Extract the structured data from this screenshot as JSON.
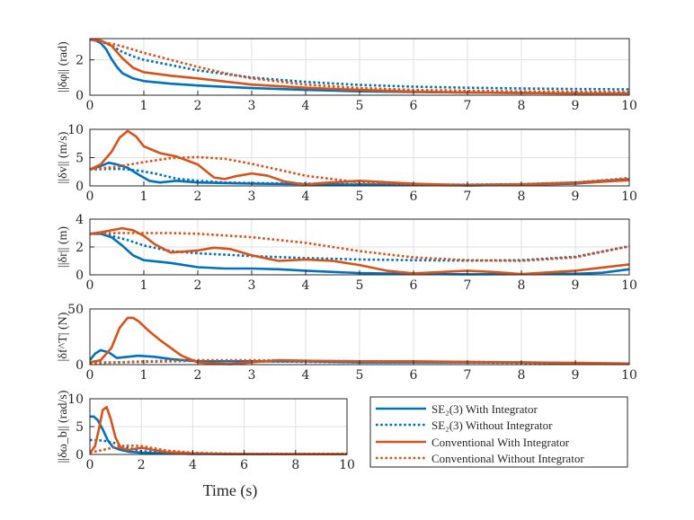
{
  "colors": {
    "blue": "#0072BD",
    "orange": "#D95319"
  },
  "legend": [
    {
      "label": "SE₂(3) With Integrator",
      "color": "#0072BD",
      "dash": "solid"
    },
    {
      "label": "SE₂(3) Without Integrator",
      "color": "#0072BD",
      "dash": "dotted"
    },
    {
      "label": "Conventional With Integrator",
      "color": "#D95319",
      "dash": "solid"
    },
    {
      "label": "Conventional Without Integrator",
      "color": "#D95319",
      "dash": "dotted"
    }
  ],
  "xlabel": "Time (s)",
  "chart_data": [
    {
      "type": "line",
      "ylabel": "||δφ|| (rad)",
      "xlim": [
        0,
        10
      ],
      "ylim": [
        0,
        3.2
      ],
      "xticks": [
        0,
        1,
        2,
        3,
        4,
        5,
        6,
        7,
        8,
        9,
        10
      ],
      "yticks": [
        0,
        2
      ],
      "series": [
        {
          "name": "SE2(3) With Integrator",
          "x": [
            0,
            0.1,
            0.2,
            0.3,
            0.4,
            0.5,
            0.6,
            0.8,
            1,
            1.5,
            2,
            3,
            4,
            5,
            6,
            7,
            8,
            9,
            10
          ],
          "y": [
            3.15,
            3.1,
            2.95,
            2.6,
            2.05,
            1.6,
            1.25,
            0.95,
            0.8,
            0.65,
            0.55,
            0.4,
            0.3,
            0.22,
            0.18,
            0.15,
            0.12,
            0.1,
            0.1
          ]
        },
        {
          "name": "SE2(3) Without Integrator",
          "x": [
            0,
            0.2,
            0.4,
            0.6,
            0.8,
            1,
            1.5,
            2,
            3,
            4,
            5,
            6,
            7,
            8,
            9,
            10
          ],
          "y": [
            3.15,
            3.05,
            2.8,
            2.45,
            2.2,
            2.0,
            1.7,
            1.4,
            1.0,
            0.75,
            0.58,
            0.48,
            0.42,
            0.38,
            0.35,
            0.33
          ]
        },
        {
          "name": "Conventional With Integrator",
          "x": [
            0,
            0.2,
            0.4,
            0.6,
            0.8,
            1,
            1.5,
            2,
            3,
            4,
            5,
            6,
            7,
            8,
            9,
            10
          ],
          "y": [
            3.15,
            3.1,
            2.8,
            2.1,
            1.55,
            1.3,
            1.1,
            0.95,
            0.6,
            0.42,
            0.3,
            0.2,
            0.15,
            0.12,
            0.1,
            0.1
          ]
        },
        {
          "name": "Conventional Without Integrator",
          "x": [
            0,
            0.5,
            1,
            1.5,
            2,
            2.5,
            3,
            4,
            5,
            6,
            7,
            8,
            9,
            10
          ],
          "y": [
            3.15,
            2.85,
            2.4,
            2.0,
            1.6,
            1.25,
            0.95,
            0.6,
            0.4,
            0.3,
            0.25,
            0.22,
            0.2,
            0.18
          ]
        }
      ]
    },
    {
      "type": "line",
      "ylabel": "||δv|| (m/s)",
      "xlim": [
        0,
        10
      ],
      "ylim": [
        0,
        10
      ],
      "xticks": [
        0,
        1,
        2,
        3,
        4,
        5,
        6,
        7,
        8,
        9,
        10
      ],
      "yticks": [
        0,
        5,
        10
      ],
      "series": [
        {
          "name": "SE2(3) With Integrator",
          "x": [
            0,
            0.2,
            0.35,
            0.5,
            0.7,
            0.9,
            1.1,
            1.3,
            1.6,
            2,
            3,
            4,
            5,
            6,
            7,
            8,
            9,
            10
          ],
          "y": [
            2.9,
            3.5,
            4.1,
            3.8,
            3.2,
            2.0,
            0.9,
            0.6,
            0.9,
            0.6,
            0.4,
            0.3,
            0.2,
            0.15,
            0.1,
            0.2,
            0.4,
            1.1
          ]
        },
        {
          "name": "SE2(3) Without Integrator",
          "x": [
            0,
            0.3,
            0.6,
            0.9,
            1.2,
            1.6,
            2,
            2.5,
            3,
            4,
            5,
            6,
            7,
            8,
            9,
            10
          ],
          "y": [
            2.9,
            3.0,
            3.0,
            2.7,
            2.2,
            1.3,
            0.9,
            0.6,
            0.5,
            0.4,
            0.3,
            0.2,
            0.2,
            0.3,
            0.6,
            1.2
          ]
        },
        {
          "name": "Conventional With Integrator",
          "x": [
            0,
            0.2,
            0.4,
            0.55,
            0.7,
            0.85,
            1,
            1.3,
            1.6,
            2,
            2.3,
            2.5,
            2.7,
            3,
            3.3,
            3.6,
            4,
            4.3,
            5,
            6,
            7,
            8,
            9,
            10
          ],
          "y": [
            2.9,
            3.8,
            6.0,
            8.5,
            9.7,
            8.8,
            7.0,
            5.8,
            5.2,
            3.8,
            1.5,
            1.2,
            1.7,
            2.2,
            1.8,
            0.8,
            0.2,
            0.5,
            0.9,
            0.4,
            0.1,
            0.2,
            0.5,
            1.0
          ]
        },
        {
          "name": "Conventional Without Integrator",
          "x": [
            0,
            0.5,
            1,
            1.5,
            2,
            2.5,
            3,
            4,
            5,
            6,
            7,
            8,
            9,
            10
          ],
          "y": [
            2.9,
            3.4,
            4.2,
            4.9,
            5.1,
            4.8,
            3.9,
            1.8,
            0.6,
            0.3,
            0.2,
            0.3,
            0.6,
            1.4
          ]
        }
      ]
    },
    {
      "type": "line",
      "ylabel": "||δr|| (m)",
      "xlim": [
        0,
        10
      ],
      "ylim": [
        0,
        4
      ],
      "xticks": [
        0,
        1,
        2,
        3,
        4,
        5,
        6,
        7,
        8,
        9,
        10
      ],
      "yticks": [
        0,
        2,
        4
      ],
      "series": [
        {
          "name": "SE2(3) With Integrator",
          "x": [
            0,
            0.2,
            0.4,
            0.6,
            0.8,
            1,
            1.5,
            2,
            2.5,
            3,
            3.5,
            4,
            5,
            6,
            7,
            8,
            9,
            9.5,
            10
          ],
          "y": [
            2.95,
            2.95,
            2.7,
            2.1,
            1.4,
            1.05,
            0.85,
            0.55,
            0.45,
            0.45,
            0.4,
            0.3,
            0.12,
            0.06,
            0.04,
            0.05,
            0.08,
            0.15,
            0.4
          ]
        },
        {
          "name": "SE2(3) Without Integrator",
          "x": [
            0,
            0.2,
            0.4,
            0.7,
            1,
            1.5,
            2,
            3,
            4,
            5,
            6,
            7,
            8,
            9,
            10
          ],
          "y": [
            2.95,
            2.95,
            2.8,
            2.5,
            2.1,
            1.7,
            1.55,
            1.35,
            1.2,
            1.1,
            1.05,
            1.02,
            1.05,
            1.3,
            2.05
          ]
        },
        {
          "name": "Conventional With Integrator",
          "x": [
            0,
            0.2,
            0.4,
            0.6,
            0.8,
            1,
            1.2,
            1.5,
            2,
            2.3,
            2.6,
            3,
            3.5,
            4,
            4.5,
            5,
            5.5,
            6,
            6.5,
            7,
            7.5,
            8,
            9,
            10
          ],
          "y": [
            2.95,
            3.05,
            3.2,
            3.35,
            3.2,
            2.8,
            2.2,
            1.6,
            1.75,
            1.95,
            1.85,
            1.4,
            1.0,
            1.1,
            1.0,
            0.7,
            0.3,
            0.1,
            0.2,
            0.3,
            0.2,
            0.05,
            0.3,
            0.75
          ]
        },
        {
          "name": "Conventional Without Integrator",
          "x": [
            0,
            0.5,
            1,
            1.5,
            2,
            3,
            4,
            5,
            6,
            7,
            8,
            9,
            10
          ],
          "y": [
            2.95,
            3.0,
            3.0,
            3.0,
            2.95,
            2.7,
            2.3,
            1.7,
            1.25,
            1.05,
            1.0,
            1.25,
            2.05
          ]
        }
      ]
    },
    {
      "type": "line",
      "ylabel": "|δf^T| (N)",
      "xlim": [
        0,
        10
      ],
      "ylim": [
        0,
        50
      ],
      "xticks": [
        0,
        1,
        2,
        3,
        4,
        5,
        6,
        7,
        8,
        9,
        10
      ],
      "yticks": [
        0,
        50
      ],
      "series": [
        {
          "name": "SE2(3) With Integrator",
          "x": [
            0,
            0.1,
            0.2,
            0.35,
            0.5,
            0.7,
            0.9,
            1.2,
            1.5,
            2,
            2.5,
            3,
            4,
            5,
            6,
            7,
            8,
            9,
            10
          ],
          "y": [
            4,
            10,
            13,
            11,
            6,
            7,
            8,
            7,
            5,
            3,
            3,
            3,
            3,
            2,
            2,
            2,
            2,
            1,
            1
          ]
        },
        {
          "name": "SE2(3) Without Integrator",
          "x": [
            0,
            0.3,
            0.6,
            1,
            1.5,
            2,
            3,
            4,
            5,
            6,
            7,
            8,
            9,
            10
          ],
          "y": [
            2,
            2,
            2,
            2.5,
            3,
            3.5,
            3,
            2.5,
            2,
            2,
            2,
            1.5,
            1,
            1
          ]
        },
        {
          "name": "Conventional With Integrator",
          "x": [
            0,
            0.2,
            0.4,
            0.55,
            0.7,
            0.8,
            0.9,
            1.1,
            1.3,
            1.5,
            1.7,
            2,
            2.3,
            2.6,
            3,
            3.5,
            4,
            5,
            6,
            7,
            8,
            9,
            10
          ],
          "y": [
            2,
            4,
            15,
            33,
            42,
            42,
            39,
            30,
            22,
            15,
            8,
            2,
            1,
            0.5,
            2,
            4,
            3.5,
            3,
            3,
            2.5,
            2,
            1.5,
            1
          ]
        },
        {
          "name": "Conventional Without Integrator",
          "x": [
            0,
            0.5,
            1,
            1.5,
            2,
            3,
            4,
            5,
            6,
            7,
            8,
            9,
            10
          ],
          "y": [
            1,
            2,
            3,
            3.5,
            4,
            4,
            3.5,
            3,
            2.5,
            2.5,
            2,
            1.5,
            1
          ]
        }
      ]
    },
    {
      "type": "line",
      "ylabel": "||δω_b|| (rad/s)",
      "xlim": [
        0,
        10
      ],
      "ylim": [
        0,
        10
      ],
      "xticks": [
        0,
        2,
        4,
        6,
        8,
        10
      ],
      "yticks": [
        0,
        5,
        10
      ],
      "series": [
        {
          "name": "SE2(3) With Integrator",
          "x": [
            0,
            0.15,
            0.3,
            0.5,
            0.7,
            0.9,
            1.2,
            1.5,
            2,
            3,
            4,
            5,
            6,
            8,
            10
          ],
          "y": [
            6.8,
            6.8,
            6.2,
            4.5,
            2.5,
            1.3,
            0.8,
            0.5,
            0.3,
            0.2,
            0.1,
            0.1,
            0.05,
            0.05,
            0.05
          ]
        },
        {
          "name": "SE2(3) Without Integrator",
          "x": [
            0,
            0.5,
            1,
            1.5,
            2,
            3,
            4,
            5,
            6,
            8,
            10
          ],
          "y": [
            2.6,
            2.5,
            2.0,
            1.2,
            0.6,
            0.3,
            0.2,
            0.1,
            0.1,
            0.1,
            0.1
          ]
        },
        {
          "name": "Conventional With Integrator",
          "x": [
            0,
            0.2,
            0.35,
            0.5,
            0.65,
            0.8,
            1.0,
            1.2,
            1.5,
            2,
            2.5,
            3,
            3.5,
            4,
            5,
            6,
            8,
            10
          ],
          "y": [
            0.2,
            1.5,
            4.5,
            8.0,
            8.5,
            6.5,
            3.0,
            1.2,
            0.8,
            1.2,
            0.8,
            0.4,
            0.3,
            0.2,
            0.1,
            0.1,
            0.05,
            0.05
          ]
        },
        {
          "name": "Conventional Without Integrator",
          "x": [
            0,
            0.5,
            1,
            1.5,
            2,
            2.5,
            3,
            4,
            5,
            6,
            8,
            10
          ],
          "y": [
            0.3,
            0.8,
            1.3,
            1.6,
            1.5,
            1.1,
            0.7,
            0.3,
            0.2,
            0.1,
            0.1,
            0.1
          ]
        }
      ]
    }
  ]
}
